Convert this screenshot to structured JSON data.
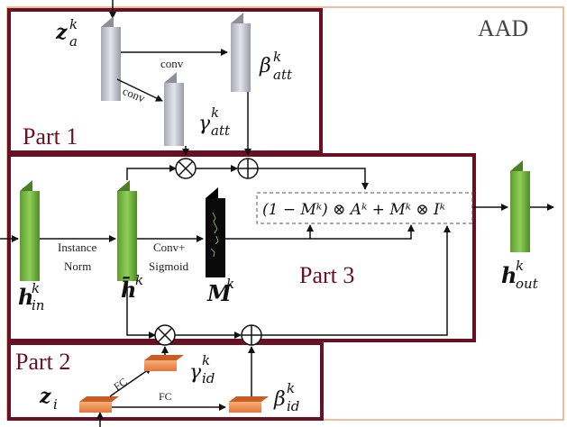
{
  "title": "AAD",
  "parts": {
    "part1": "Part 1",
    "part2": "Part 2",
    "part3": "Part 3"
  },
  "ops": {
    "conv_top": "conv",
    "conv_diag": "conv",
    "instance_norm_1": "Instance",
    "instance_norm_2": "Norm",
    "conv_sigmoid_1": "Conv+",
    "conv_sigmoid_2": "Sigmoid",
    "fc_diag": "FC",
    "fc_flat": "FC"
  },
  "symbols": {
    "z_a": {
      "base": "z",
      "sub": "a",
      "sup": "k"
    },
    "beta_att": {
      "base": "β",
      "sub": "att",
      "sup": "k"
    },
    "gamma_att": {
      "base": "γ",
      "sub": "att",
      "sup": "k"
    },
    "h_in": {
      "base": "h",
      "sub": "in",
      "sup": "k"
    },
    "h_bar": {
      "base": "h̄",
      "sup": "k"
    },
    "mask": {
      "base": "M",
      "sup": "k"
    },
    "h_out": {
      "base": "h",
      "sub": "out",
      "sup": "k"
    },
    "z_id": {
      "base": "z",
      "sub": "i"
    },
    "gamma_id": {
      "base": "γ",
      "sub": "id",
      "sup": "k"
    },
    "beta_id": {
      "base": "β",
      "sub": "id",
      "sup": "k"
    }
  },
  "formula": "(1 − Mᵏ) ⊗ Aᵏ + Mᵏ ⊗ Iᵏ",
  "colors": {
    "part_border": "#6b1022",
    "aad_border": "#e8a87c",
    "green": "#7fbf4a",
    "gray": "#c9c9d1",
    "orange": "#f08c4a"
  }
}
